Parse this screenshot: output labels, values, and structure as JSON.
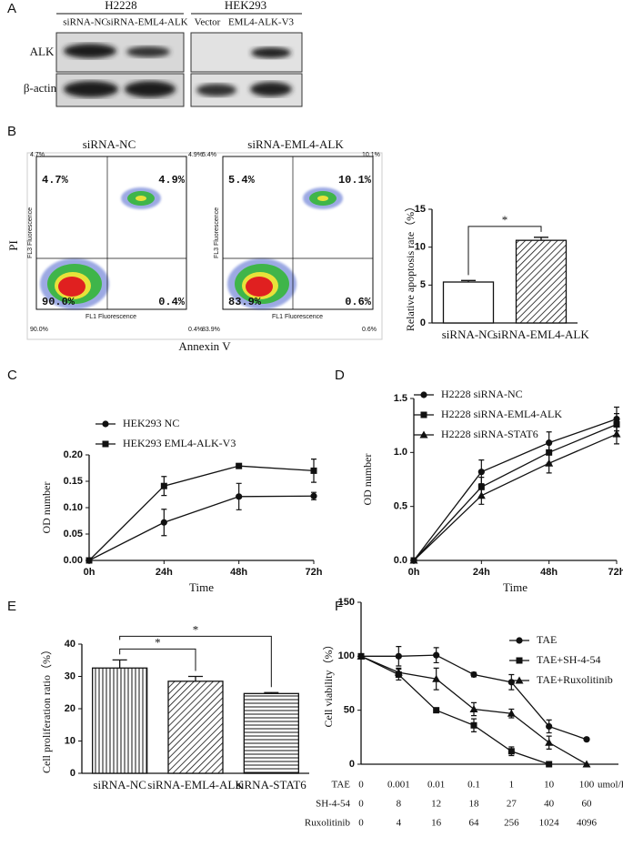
{
  "panel_labels": [
    "A",
    "B",
    "C",
    "D",
    "E",
    "F"
  ],
  "blot": {
    "cell_lines": [
      "H2228",
      "HEK293"
    ],
    "lanes": [
      "siRNA-NC",
      "siRNA-EML4-ALK",
      "Vector",
      "EML4-ALK-V3"
    ],
    "proteins": [
      "ALK",
      "β-actin"
    ]
  },
  "flow": {
    "y_label": "PI",
    "x_label": "Annexin V",
    "plot_y_label": "FL3 Fluorescence",
    "plot_x_label": "FL1 Fluorescence",
    "plots": [
      {
        "title": "siRNA-NC",
        "quadrants": [
          "4.7%",
          "4.9%",
          "90.0%",
          "0.4%"
        ]
      },
      {
        "title": "siRNA-EML4-ALK",
        "quadrants": [
          "5.4%",
          "10.1%",
          "83.9%",
          "0.6%"
        ]
      }
    ]
  },
  "chart_data": [
    {
      "type": "bar",
      "categories": [
        "siRNA-NC",
        "siRNA-EML4-ALK"
      ],
      "values": [
        5.4,
        10.9
      ],
      "errors": [
        0.2,
        0.4
      ],
      "patterns": [
        "none",
        "diagonal"
      ],
      "ylabel": "Relative apoptosis rate（%）",
      "ylim": [
        0,
        15
      ],
      "yticks": [
        0,
        5,
        10,
        15
      ],
      "significance": [
        {
          "from": 0,
          "to": 1,
          "label": "*"
        }
      ]
    },
    {
      "type": "line",
      "categories": [
        "0h",
        "24h",
        "48h",
        "72h"
      ],
      "xlabel": "Time",
      "ylabel": "OD number",
      "ylim": [
        0,
        0.2
      ],
      "yticks": [
        {
          "value": 0,
          "label": "0.00"
        },
        {
          "value": 0.05,
          "label": "0.05"
        },
        {
          "value": 0.1,
          "label": "0.10"
        },
        {
          "value": 0.15,
          "label": "0.15"
        },
        {
          "value": 0.2,
          "label": "0.20"
        }
      ],
      "series": [
        {
          "name": "HEK293 NC",
          "marker": "circle",
          "values": [
            0,
            0.072,
            0.121,
            0.122
          ],
          "errors": [
            0,
            0.025,
            0.025,
            0.007
          ]
        },
        {
          "name": "HEK293 EML4-ALK-V3",
          "marker": "square",
          "values": [
            0,
            0.141,
            0.179,
            0.17
          ],
          "errors": [
            0,
            0.018,
            0.004,
            0.022
          ]
        }
      ]
    },
    {
      "type": "line",
      "categories": [
        "0h",
        "24h",
        "48h",
        "72h"
      ],
      "xlabel": "Time",
      "ylabel": "OD number",
      "ylim": [
        0,
        1.5
      ],
      "yticks": [
        {
          "value": 0,
          "label": "0.0"
        },
        {
          "value": 0.5,
          "label": "0.5"
        },
        {
          "value": 1,
          "label": "1.0"
        },
        {
          "value": 1.5,
          "label": "1.5"
        }
      ],
      "series": [
        {
          "name": "H2228 siRNA-NC",
          "marker": "circle",
          "values": [
            0,
            0.82,
            1.09,
            1.31
          ],
          "errors": [
            0,
            0.11,
            0.1,
            0.11
          ]
        },
        {
          "name": "H2228 siRNA-EML4-ALK",
          "marker": "square",
          "values": [
            0,
            0.68,
            1.0,
            1.26
          ],
          "errors": [
            0,
            0.09,
            0.1,
            0.1
          ]
        },
        {
          "name": "H2228 siRNA-STAT6",
          "marker": "triangle",
          "values": [
            0,
            0.6,
            0.9,
            1.17
          ],
          "errors": [
            0,
            0.08,
            0.09,
            0.09
          ]
        }
      ]
    },
    {
      "type": "bar",
      "categories": [
        "siRNA-NC",
        "siRNA-EML4-ALK",
        "siRNA-STAT6"
      ],
      "values": [
        32.6,
        28.5,
        24.7
      ],
      "errors": [
        2.5,
        1.5,
        0.3
      ],
      "patterns": [
        "vertical",
        "diagonal",
        "horizontal"
      ],
      "ylabel": "Cell proliferation ratio（%）",
      "ylim": [
        0,
        40
      ],
      "yticks": [
        0,
        10,
        20,
        30,
        40
      ],
      "significance": [
        {
          "from": 0,
          "to": 1,
          "label": "*"
        },
        {
          "from": 0,
          "to": 2,
          "label": "*"
        }
      ]
    },
    {
      "type": "line",
      "categories": [
        "0",
        "0.001",
        "0.01",
        "0.1",
        "1",
        "10",
        "100"
      ],
      "category_name": "TAE",
      "category_unit": "umol/L",
      "extra_rows": [
        {
          "name": "SH-4-54",
          "labels": [
            "0",
            "8",
            "12",
            "18",
            "27",
            "40",
            "60"
          ]
        },
        {
          "name": "Ruxolitinib",
          "labels": [
            "0",
            "4",
            "16",
            "64",
            "256",
            "1024",
            "4096"
          ]
        }
      ],
      "ylabel": "Cell viability（%）",
      "ylim": [
        0,
        150
      ],
      "yticks": [
        0,
        50,
        100,
        150
      ],
      "series": [
        {
          "name": "TAE",
          "marker": "circle",
          "values": [
            100,
            100,
            101,
            83,
            76,
            35,
            23
          ],
          "errors": [
            0,
            9,
            7,
            2,
            7,
            6,
            0
          ]
        },
        {
          "name": "TAE+SH-4-54",
          "marker": "square",
          "values": [
            100,
            83,
            50,
            36,
            12,
            0,
            null
          ],
          "errors": [
            0,
            5,
            1,
            6,
            4,
            1,
            null
          ]
        },
        {
          "name": "TAE+Ruxolitinib",
          "marker": "triangle",
          "values": [
            100,
            85,
            79,
            51,
            47,
            20,
            0
          ],
          "errors": [
            0,
            4,
            10,
            6,
            4,
            6,
            0
          ]
        }
      ]
    }
  ]
}
